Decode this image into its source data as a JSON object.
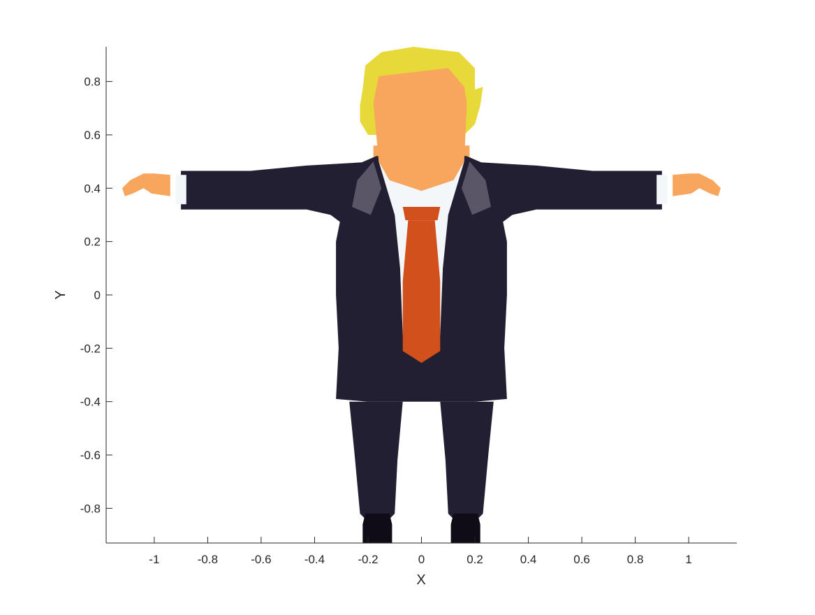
{
  "chart_data": {
    "type": "scatter",
    "title": "",
    "xlabel": "X",
    "ylabel": "Y",
    "xlim": [
      -1.18,
      1.18
    ],
    "ylim": [
      -0.93,
      0.93
    ],
    "xticks": [
      -1,
      -0.8,
      -0.6,
      -0.4,
      -0.2,
      0,
      0.2,
      0.4,
      0.6,
      0.8,
      1
    ],
    "yticks": [
      -0.8,
      -0.6,
      -0.4,
      -0.2,
      0,
      0.2,
      0.4,
      0.6,
      0.8
    ],
    "xtick_labels": [
      "-1",
      "-0.8",
      "-0.6",
      "-0.4",
      "-0.2",
      "0",
      "0.2",
      "0.4",
      "0.6",
      "0.8",
      "1"
    ],
    "ytick_labels": [
      "-0.8",
      "-0.6",
      "-0.4",
      "-0.2",
      "0",
      "0.2",
      "0.4",
      "0.6",
      "0.8"
    ],
    "grid": false,
    "box": false,
    "colors": {
      "hair": "#e8d93a",
      "hair_shade": "#d8c42e",
      "skin": "#f8a65e",
      "suit": "#231f33",
      "suit_highlight": "#5a5668",
      "shirt": "#f3f7fa",
      "tie": "#d2501c",
      "shoe": "#0f0c18"
    },
    "figure_parts": [
      {
        "name": "hair",
        "color": "hair",
        "points": [
          [
            -0.21,
            0.86
          ],
          [
            -0.15,
            0.91
          ],
          [
            -0.03,
            0.93
          ],
          [
            0.14,
            0.91
          ],
          [
            0.2,
            0.85
          ],
          [
            0.2,
            0.77
          ],
          [
            0.23,
            0.78
          ],
          [
            0.22,
            0.71
          ],
          [
            0.2,
            0.64
          ],
          [
            0.16,
            0.6
          ],
          [
            -0.2,
            0.6
          ],
          [
            -0.23,
            0.65
          ],
          [
            -0.23,
            0.71
          ],
          [
            -0.22,
            0.77
          ]
        ]
      },
      {
        "name": "neck",
        "color": "skin",
        "points": [
          [
            -0.18,
            0.56
          ],
          [
            0.18,
            0.56
          ],
          [
            0.18,
            0.42
          ],
          [
            0,
            0.34
          ],
          [
            -0.18,
            0.42
          ]
        ]
      },
      {
        "name": "right-sleeve",
        "color": "suit",
        "points": [
          [
            -0.9,
            0.465
          ],
          [
            -0.64,
            0.465
          ],
          [
            -0.43,
            0.485
          ],
          [
            -0.17,
            0.5
          ],
          [
            -0.19,
            0.28
          ],
          [
            -0.3,
            0.27
          ],
          [
            -0.34,
            0.3
          ],
          [
            -0.43,
            0.32
          ],
          [
            -0.64,
            0.32
          ],
          [
            -0.9,
            0.32
          ]
        ]
      },
      {
        "name": "left-sleeve",
        "color": "suit",
        "points": [
          [
            0.9,
            0.465
          ],
          [
            0.64,
            0.465
          ],
          [
            0.43,
            0.485
          ],
          [
            0.17,
            0.5
          ],
          [
            0.19,
            0.28
          ],
          [
            0.3,
            0.27
          ],
          [
            0.34,
            0.3
          ],
          [
            0.43,
            0.32
          ],
          [
            0.64,
            0.32
          ],
          [
            0.9,
            0.32
          ]
        ]
      },
      {
        "name": "right-cuff",
        "color": "shirt",
        "points": [
          [
            -0.92,
            0.45
          ],
          [
            -0.88,
            0.45
          ],
          [
            -0.88,
            0.34
          ],
          [
            -0.92,
            0.34
          ]
        ]
      },
      {
        "name": "left-cuff",
        "color": "shirt",
        "points": [
          [
            0.92,
            0.45
          ],
          [
            0.88,
            0.45
          ],
          [
            0.88,
            0.34
          ],
          [
            0.92,
            0.34
          ]
        ]
      },
      {
        "name": "right-hand",
        "color": "skin",
        "points": [
          [
            -0.94,
            0.45
          ],
          [
            -1.0,
            0.455
          ],
          [
            -1.04,
            0.455
          ],
          [
            -1.09,
            0.43
          ],
          [
            -1.12,
            0.4
          ],
          [
            -1.11,
            0.37
          ],
          [
            -1.08,
            0.38
          ],
          [
            -1.04,
            0.4
          ],
          [
            -1.01,
            0.38
          ],
          [
            -0.94,
            0.37
          ]
        ]
      },
      {
        "name": "left-hand",
        "color": "skin",
        "points": [
          [
            0.94,
            0.45
          ],
          [
            1.0,
            0.455
          ],
          [
            1.04,
            0.455
          ],
          [
            1.09,
            0.43
          ],
          [
            1.12,
            0.4
          ],
          [
            1.11,
            0.37
          ],
          [
            1.08,
            0.38
          ],
          [
            1.04,
            0.4
          ],
          [
            1.01,
            0.38
          ],
          [
            0.94,
            0.37
          ]
        ]
      },
      {
        "name": "right-leg",
        "color": "suit",
        "points": [
          [
            -0.27,
            -0.4
          ],
          [
            -0.07,
            -0.4
          ],
          [
            -0.09,
            -0.62
          ],
          [
            -0.1,
            -0.82
          ],
          [
            -0.12,
            -0.84
          ],
          [
            -0.21,
            -0.84
          ],
          [
            -0.23,
            -0.82
          ],
          [
            -0.25,
            -0.6
          ]
        ]
      },
      {
        "name": "left-leg",
        "color": "suit",
        "points": [
          [
            0.27,
            -0.4
          ],
          [
            0.07,
            -0.4
          ],
          [
            0.09,
            -0.62
          ],
          [
            0.1,
            -0.82
          ],
          [
            0.12,
            -0.84
          ],
          [
            0.21,
            -0.84
          ],
          [
            0.23,
            -0.82
          ],
          [
            0.25,
            -0.6
          ]
        ]
      },
      {
        "name": "right-shoe",
        "color": "shoe",
        "points": [
          [
            -0.21,
            -0.82
          ],
          [
            -0.12,
            -0.82
          ],
          [
            -0.11,
            -0.86
          ],
          [
            -0.11,
            -0.93
          ],
          [
            -0.22,
            -0.93
          ],
          [
            -0.22,
            -0.86
          ]
        ]
      },
      {
        "name": "left-shoe",
        "color": "shoe",
        "points": [
          [
            0.21,
            -0.82
          ],
          [
            0.12,
            -0.82
          ],
          [
            0.11,
            -0.86
          ],
          [
            0.11,
            -0.93
          ],
          [
            0.22,
            -0.93
          ],
          [
            0.22,
            -0.86
          ]
        ]
      },
      {
        "name": "torso",
        "color": "suit",
        "points": [
          [
            -0.17,
            0.52
          ],
          [
            -0.24,
            0.49
          ],
          [
            -0.3,
            0.3
          ],
          [
            -0.32,
            0.2
          ],
          [
            -0.32,
            0.0
          ],
          [
            -0.31,
            -0.2
          ],
          [
            -0.32,
            -0.39
          ],
          [
            -0.2,
            -0.4
          ],
          [
            0.0,
            -0.4
          ],
          [
            0.2,
            -0.4
          ],
          [
            0.32,
            -0.39
          ],
          [
            0.31,
            -0.2
          ],
          [
            0.32,
            0.0
          ],
          [
            0.32,
            0.2
          ],
          [
            0.3,
            0.3
          ],
          [
            0.24,
            0.49
          ],
          [
            0.17,
            0.52
          ],
          [
            0.0,
            0.54
          ]
        ]
      },
      {
        "name": "right-lapel-sheen",
        "color": "suit_highlight",
        "points": [
          [
            -0.18,
            0.5
          ],
          [
            -0.24,
            0.43
          ],
          [
            -0.26,
            0.33
          ],
          [
            -0.19,
            0.3
          ],
          [
            -0.15,
            0.4
          ]
        ]
      },
      {
        "name": "left-lapel-sheen",
        "color": "suit_highlight",
        "points": [
          [
            0.18,
            0.5
          ],
          [
            0.24,
            0.43
          ],
          [
            0.26,
            0.33
          ],
          [
            0.19,
            0.3
          ],
          [
            0.15,
            0.4
          ]
        ]
      },
      {
        "name": "shirt-front",
        "color": "shirt",
        "points": [
          [
            -0.16,
            0.5
          ],
          [
            0.16,
            0.5
          ],
          [
            0.1,
            0.3
          ],
          [
            0.08,
            0.1
          ],
          [
            0.07,
            -0.15
          ],
          [
            0.0,
            -0.18
          ],
          [
            -0.07,
            -0.15
          ],
          [
            -0.08,
            0.1
          ],
          [
            -0.1,
            0.3
          ]
        ]
      },
      {
        "name": "face",
        "color": "skin",
        "points": [
          [
            -0.16,
            0.82
          ],
          [
            0.1,
            0.85
          ],
          [
            0.16,
            0.78
          ],
          [
            0.17,
            0.72
          ],
          [
            0.16,
            0.5
          ],
          [
            0.12,
            0.43
          ],
          [
            0.0,
            0.39
          ],
          [
            -0.12,
            0.43
          ],
          [
            -0.16,
            0.5
          ],
          [
            -0.18,
            0.72
          ]
        ]
      },
      {
        "name": "tie-knot",
        "color": "tie",
        "points": [
          [
            -0.07,
            0.33
          ],
          [
            0.07,
            0.33
          ],
          [
            0.06,
            0.28
          ],
          [
            -0.06,
            0.28
          ]
        ]
      },
      {
        "name": "tie",
        "color": "tie",
        "points": [
          [
            -0.05,
            0.28
          ],
          [
            0.05,
            0.28
          ],
          [
            0.07,
            0.05
          ],
          [
            0.07,
            -0.21
          ],
          [
            0.0,
            -0.255
          ],
          [
            -0.07,
            -0.21
          ],
          [
            -0.07,
            0.05
          ]
        ]
      }
    ]
  }
}
